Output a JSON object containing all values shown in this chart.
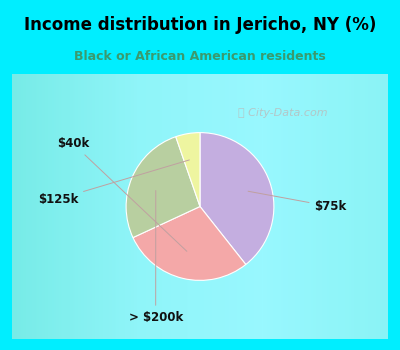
{
  "title": "Income distribution in Jericho, NY (%)",
  "subtitle": "Black or African American residents",
  "title_color": "#000000",
  "subtitle_color": "#3a9a6e",
  "background_outer": "#00eeff",
  "background_inner_color": "#e0f2e9",
  "slices": [
    {
      "label": "$75k",
      "value": 37,
      "color": "#c4aee0"
    },
    {
      "label": "$40k",
      "value": 27,
      "color": "#f4a8a8"
    },
    {
      "label": "> $200k",
      "value": 25,
      "color": "#b8cfa0"
    },
    {
      "label": "$125k",
      "value": 5,
      "color": "#eef5a0"
    }
  ],
  "label_color": "#111111",
  "figsize": [
    4.0,
    3.5
  ],
  "dpi": 100,
  "watermark": "City-Data.com"
}
